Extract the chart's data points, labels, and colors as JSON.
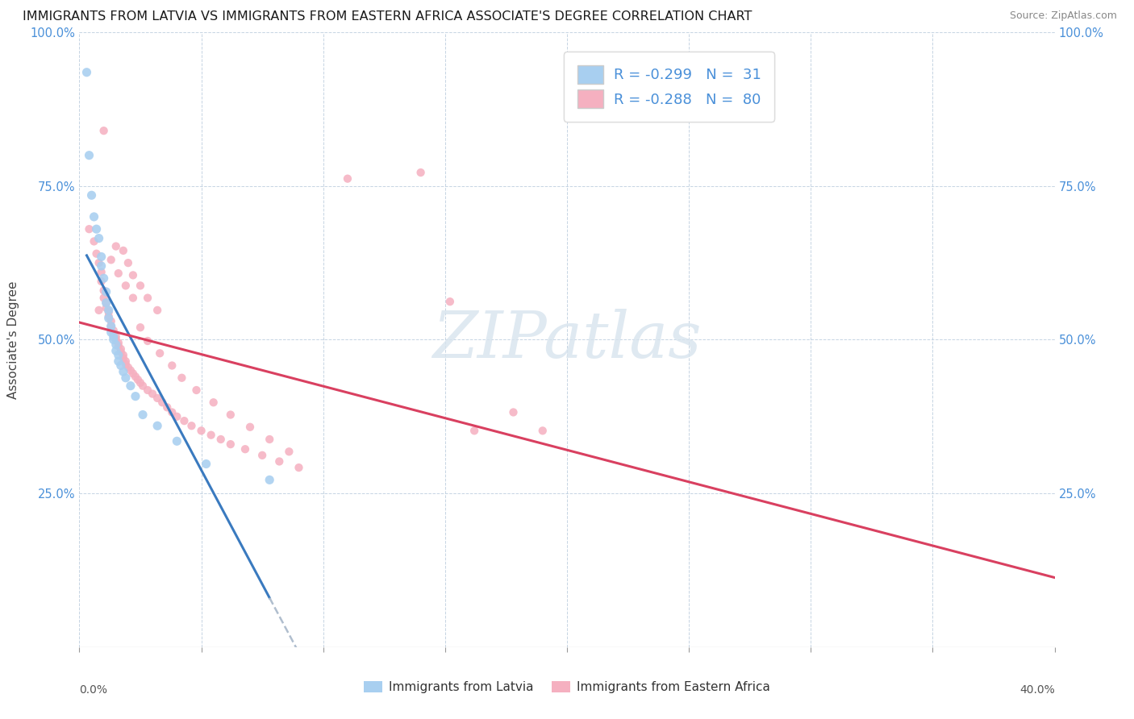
{
  "title": "IMMIGRANTS FROM LATVIA VS IMMIGRANTS FROM EASTERN AFRICA ASSOCIATE'S DEGREE CORRELATION CHART",
  "source": "Source: ZipAtlas.com",
  "ylabel": "Associate's Degree",
  "y_tick_vals": [
    0.0,
    0.25,
    0.5,
    0.75,
    1.0
  ],
  "y_tick_labels": [
    "",
    "25.0%",
    "50.0%",
    "75.0%",
    "100.0%"
  ],
  "x_tick_vals": [
    0.0,
    0.05,
    0.1,
    0.15,
    0.2,
    0.25,
    0.3,
    0.35,
    0.4
  ],
  "x_tick_labels": [
    "",
    "",
    "",
    "",
    "",
    "",
    "",
    "",
    ""
  ],
  "legend_blue_label": "Immigrants from Latvia",
  "legend_pink_label": "Immigrants from Eastern Africa",
  "R_blue": -0.299,
  "N_blue": 31,
  "R_pink": -0.288,
  "N_pink": 80,
  "blue_color": "#a8cff0",
  "pink_color": "#f5b0c0",
  "blue_line_color": "#3a7abf",
  "pink_line_color": "#d94060",
  "dash_color": "#b0bece",
  "watermark_color": "#d8e4ee",
  "background_color": "#ffffff",
  "title_fontsize": 11.5,
  "blue_scatter": [
    [
      0.003,
      0.935
    ],
    [
      0.004,
      0.8
    ],
    [
      0.005,
      0.735
    ],
    [
      0.006,
      0.7
    ],
    [
      0.007,
      0.68
    ],
    [
      0.008,
      0.665
    ],
    [
      0.009,
      0.635
    ],
    [
      0.009,
      0.62
    ],
    [
      0.01,
      0.6
    ],
    [
      0.011,
      0.578
    ],
    [
      0.011,
      0.56
    ],
    [
      0.012,
      0.548
    ],
    [
      0.012,
      0.535
    ],
    [
      0.013,
      0.522
    ],
    [
      0.013,
      0.512
    ],
    [
      0.014,
      0.505
    ],
    [
      0.014,
      0.5
    ],
    [
      0.015,
      0.492
    ],
    [
      0.015,
      0.482
    ],
    [
      0.016,
      0.475
    ],
    [
      0.016,
      0.465
    ],
    [
      0.017,
      0.458
    ],
    [
      0.018,
      0.448
    ],
    [
      0.019,
      0.438
    ],
    [
      0.021,
      0.425
    ],
    [
      0.023,
      0.408
    ],
    [
      0.026,
      0.378
    ],
    [
      0.032,
      0.36
    ],
    [
      0.04,
      0.335
    ],
    [
      0.052,
      0.298
    ],
    [
      0.078,
      0.272
    ]
  ],
  "pink_scatter": [
    [
      0.004,
      0.68
    ],
    [
      0.006,
      0.66
    ],
    [
      0.007,
      0.64
    ],
    [
      0.008,
      0.625
    ],
    [
      0.009,
      0.61
    ],
    [
      0.009,
      0.595
    ],
    [
      0.01,
      0.58
    ],
    [
      0.01,
      0.568
    ],
    [
      0.011,
      0.56
    ],
    [
      0.011,
      0.552
    ],
    [
      0.012,
      0.545
    ],
    [
      0.012,
      0.538
    ],
    [
      0.013,
      0.53
    ],
    [
      0.013,
      0.522
    ],
    [
      0.014,
      0.515
    ],
    [
      0.014,
      0.51
    ],
    [
      0.015,
      0.505
    ],
    [
      0.015,
      0.5
    ],
    [
      0.016,
      0.495
    ],
    [
      0.016,
      0.49
    ],
    [
      0.017,
      0.485
    ],
    [
      0.017,
      0.48
    ],
    [
      0.018,
      0.475
    ],
    [
      0.018,
      0.47
    ],
    [
      0.019,
      0.465
    ],
    [
      0.019,
      0.46
    ],
    [
      0.02,
      0.455
    ],
    [
      0.021,
      0.45
    ],
    [
      0.022,
      0.445
    ],
    [
      0.023,
      0.44
    ],
    [
      0.024,
      0.435
    ],
    [
      0.025,
      0.43
    ],
    [
      0.026,
      0.425
    ],
    [
      0.028,
      0.418
    ],
    [
      0.03,
      0.412
    ],
    [
      0.032,
      0.405
    ],
    [
      0.034,
      0.398
    ],
    [
      0.036,
      0.39
    ],
    [
      0.038,
      0.382
    ],
    [
      0.04,
      0.375
    ],
    [
      0.043,
      0.368
    ],
    [
      0.046,
      0.36
    ],
    [
      0.05,
      0.352
    ],
    [
      0.054,
      0.345
    ],
    [
      0.058,
      0.338
    ],
    [
      0.062,
      0.33
    ],
    [
      0.068,
      0.322
    ],
    [
      0.075,
      0.312
    ],
    [
      0.082,
      0.302
    ],
    [
      0.09,
      0.292
    ],
    [
      0.01,
      0.84
    ],
    [
      0.015,
      0.652
    ],
    [
      0.013,
      0.63
    ],
    [
      0.016,
      0.608
    ],
    [
      0.019,
      0.588
    ],
    [
      0.022,
      0.568
    ],
    [
      0.008,
      0.548
    ],
    [
      0.025,
      0.52
    ],
    [
      0.028,
      0.498
    ],
    [
      0.033,
      0.478
    ],
    [
      0.038,
      0.458
    ],
    [
      0.042,
      0.438
    ],
    [
      0.048,
      0.418
    ],
    [
      0.055,
      0.398
    ],
    [
      0.062,
      0.378
    ],
    [
      0.07,
      0.358
    ],
    [
      0.078,
      0.338
    ],
    [
      0.086,
      0.318
    ],
    [
      0.018,
      0.645
    ],
    [
      0.02,
      0.625
    ],
    [
      0.022,
      0.605
    ],
    [
      0.025,
      0.588
    ],
    [
      0.028,
      0.568
    ],
    [
      0.032,
      0.548
    ],
    [
      0.11,
      0.762
    ],
    [
      0.14,
      0.772
    ],
    [
      0.152,
      0.562
    ],
    [
      0.162,
      0.352
    ],
    [
      0.178,
      0.382
    ],
    [
      0.19,
      0.352
    ]
  ]
}
